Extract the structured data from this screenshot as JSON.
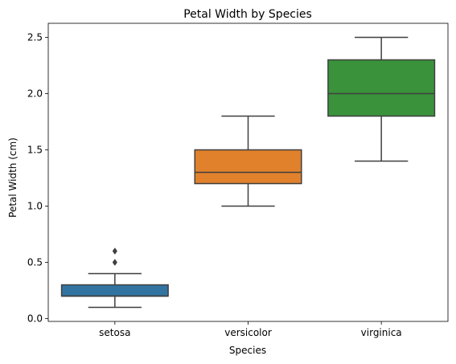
{
  "chart_data": {
    "type": "box",
    "title": "Petal Width by Species",
    "xlabel": "Species",
    "ylabel": "Petal Width (cm)",
    "ylim": [
      -0.025,
      2.625
    ],
    "yticks": [
      0.0,
      0.5,
      1.0,
      1.5,
      2.0,
      2.5
    ],
    "ytick_labels": [
      "0.0",
      "0.5",
      "1.0",
      "1.5",
      "2.0",
      "2.5"
    ],
    "categories": [
      "setosa",
      "versicolor",
      "virginica"
    ],
    "boxes": [
      {
        "name": "setosa",
        "whisker_low": 0.1,
        "q1": 0.2,
        "median": 0.2,
        "q3": 0.3,
        "whisker_high": 0.4,
        "outliers": [
          0.5,
          0.6
        ],
        "color": "#3274a1"
      },
      {
        "name": "versicolor",
        "whisker_low": 1.0,
        "q1": 1.2,
        "median": 1.3,
        "q3": 1.5,
        "whisker_high": 1.8,
        "outliers": [],
        "color": "#e1812c"
      },
      {
        "name": "virginica",
        "whisker_low": 1.4,
        "q1": 1.8,
        "median": 2.0,
        "q3": 2.3,
        "whisker_high": 2.5,
        "outliers": [],
        "color": "#3a923a"
      }
    ],
    "grid": false,
    "line_color": "#3f3f3f"
  }
}
